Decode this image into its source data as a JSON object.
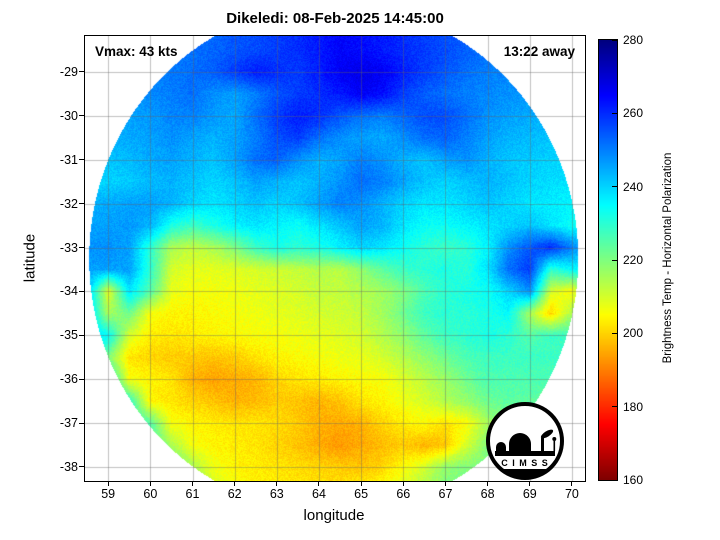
{
  "figure": {
    "title": "Dikeledi: 08-Feb-2025 14:45:00",
    "vmax_label": "Vmax: 43 kts",
    "away_label": "13:22 away",
    "xlabel": "longitude",
    "ylabel": "latitude",
    "colorbar_label": "Brightness Temp - Horizontal Polarization",
    "logo_text": "C I M S S",
    "x_ticks": [
      59,
      60,
      61,
      62,
      63,
      64,
      65,
      66,
      67,
      68,
      69,
      70
    ],
    "y_ticks": [
      -29,
      -30,
      -31,
      -32,
      -33,
      -34,
      -35,
      -36,
      -37,
      -38
    ],
    "colorbar_ticks": [
      160,
      180,
      200,
      220,
      240,
      260,
      280
    ]
  },
  "chart_data": {
    "type": "heatmap",
    "title": "Dikeledi: 08-Feb-2025 14:45:00",
    "xlabel": "longitude",
    "ylabel": "latitude",
    "colorbar_label": "Brightness Temp - Horizontal Polarization",
    "colormap": "jet-reversed",
    "value_range": [
      160,
      280
    ],
    "xlim": [
      58.45,
      70.31
    ],
    "ylim": [
      -38.32,
      -28.18
    ],
    "grid_on": true,
    "annotations": [
      "Vmax: 43 kts",
      "13:22 away"
    ],
    "swath": {
      "center_lon": 64.35,
      "center_lat": -33.25,
      "radius_deg": 5.8
    },
    "grid": {
      "lon_start": 58.5,
      "lon_step": 0.5,
      "lat_start": -28.5,
      "lat_step": -0.5,
      "units": "K",
      "values": [
        [
          250,
          250,
          250,
          250,
          250,
          252,
          253,
          255,
          256,
          258,
          260,
          262,
          265,
          264,
          262,
          260,
          258,
          256,
          254,
          252,
          250,
          250,
          250,
          250,
          250
        ],
        [
          250,
          250,
          250,
          250,
          251,
          252,
          254,
          258,
          262,
          260,
          258,
          262,
          266,
          268,
          266,
          262,
          258,
          255,
          252,
          250,
          249,
          248,
          248,
          248,
          248
        ],
        [
          248,
          248,
          248,
          249,
          250,
          252,
          248,
          246,
          250,
          255,
          258,
          260,
          262,
          266,
          264,
          258,
          254,
          252,
          250,
          249,
          248,
          247,
          246,
          246,
          246
        ],
        [
          246,
          246,
          246,
          247,
          249,
          250,
          247,
          245,
          252,
          258,
          262,
          260,
          255,
          252,
          250,
          253,
          256,
          256,
          252,
          248,
          246,
          245,
          244,
          244,
          244
        ],
        [
          244,
          244,
          245,
          246,
          248,
          246,
          244,
          246,
          250,
          256,
          258,
          252,
          248,
          246,
          245,
          248,
          252,
          254,
          250,
          246,
          244,
          243,
          242,
          242,
          242
        ],
        [
          242,
          242,
          243,
          245,
          246,
          244,
          242,
          246,
          252,
          254,
          248,
          244,
          246,
          250,
          248,
          244,
          242,
          246,
          248,
          244,
          242,
          241,
          240,
          240,
          240
        ],
        [
          240,
          240,
          241,
          243,
          244,
          242,
          240,
          242,
          246,
          244,
          242,
          244,
          248,
          252,
          250,
          246,
          242,
          240,
          242,
          244,
          242,
          240,
          239,
          238,
          238
        ],
        [
          244,
          245,
          246,
          246,
          244,
          240,
          238,
          240,
          242,
          240,
          242,
          246,
          250,
          248,
          244,
          240,
          238,
          238,
          240,
          242,
          240,
          238,
          237,
          236,
          236
        ],
        [
          246,
          246,
          247,
          244,
          232,
          228,
          232,
          236,
          238,
          236,
          234,
          238,
          242,
          246,
          244,
          238,
          234,
          234,
          236,
          238,
          240,
          242,
          238,
          234,
          234
        ],
        [
          248,
          248,
          246,
          230,
          215,
          212,
          215,
          220,
          228,
          232,
          230,
          232,
          236,
          240,
          238,
          234,
          230,
          228,
          230,
          236,
          248,
          255,
          260,
          250,
          240
        ],
        [
          246,
          246,
          246,
          230,
          210,
          208,
          208,
          209,
          210,
          211,
          212,
          214,
          213,
          218,
          224,
          228,
          230,
          232,
          230,
          238,
          252,
          258,
          230,
          235,
          235
        ],
        [
          244,
          208,
          238,
          225,
          208,
          206,
          206,
          207,
          208,
          209,
          210,
          212,
          212,
          214,
          216,
          220,
          226,
          230,
          232,
          234,
          240,
          248,
          210,
          205,
          228
        ],
        [
          242,
          215,
          222,
          206,
          204,
          204,
          205,
          206,
          207,
          208,
          209,
          210,
          211,
          212,
          216,
          222,
          228,
          230,
          230,
          232,
          235,
          215,
          200,
          215,
          228
        ],
        [
          240,
          235,
          210,
          203,
          202,
          203,
          204,
          205,
          206,
          206,
          207,
          208,
          209,
          210,
          214,
          218,
          224,
          228,
          230,
          232,
          230,
          225,
          228,
          228,
          228
        ],
        [
          238,
          220,
          202,
          200,
          199,
          199,
          198,
          199,
          202,
          204,
          205,
          206,
          207,
          208,
          210,
          214,
          218,
          222,
          226,
          228,
          228,
          228,
          228,
          228,
          228
        ],
        [
          235,
          235,
          206,
          204,
          202,
          196,
          194,
          195,
          196,
          200,
          202,
          203,
          204,
          205,
          206,
          209,
          213,
          217,
          222,
          226,
          226,
          226,
          226,
          226,
          226
        ],
        [
          232,
          232,
          230,
          204,
          202,
          200,
          198,
          196,
          197,
          199,
          198,
          196,
          198,
          202,
          204,
          207,
          210,
          214,
          218,
          222,
          224,
          224,
          224,
          224,
          224
        ],
        [
          230,
          230,
          230,
          225,
          206,
          204,
          203,
          202,
          202,
          201,
          199,
          196,
          195,
          196,
          200,
          203,
          205,
          202,
          205,
          215,
          222,
          222,
          222,
          222,
          222
        ],
        [
          228,
          228,
          228,
          228,
          215,
          206,
          204,
          203,
          202,
          200,
          198,
          195,
          193,
          195,
          197,
          199,
          196,
          198,
          210,
          220,
          220,
          220,
          220,
          220,
          220
        ],
        [
          226,
          226,
          226,
          226,
          226,
          215,
          207,
          204,
          203,
          202,
          201,
          200,
          199,
          198,
          200,
          205,
          210,
          218,
          220,
          220,
          220,
          220,
          220,
          220,
          220
        ],
        [
          224,
          224,
          224,
          224,
          224,
          220,
          210,
          206,
          204,
          203,
          202,
          202,
          202,
          203,
          206,
          210,
          215,
          220,
          220,
          220,
          220,
          220,
          220,
          220,
          220
        ]
      ]
    }
  }
}
